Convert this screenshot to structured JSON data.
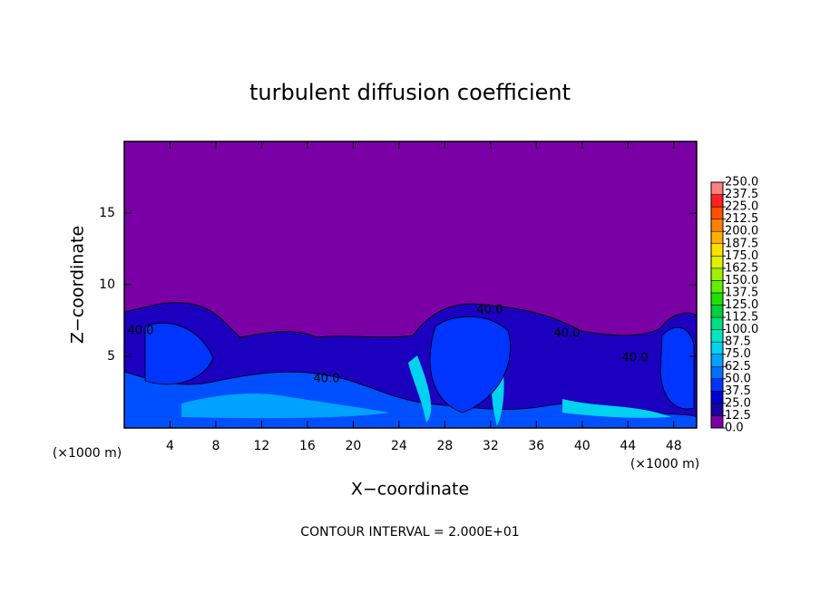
{
  "chart_data": {
    "type": "contour",
    "title": "turbulent diffusion coefficient",
    "xlabel": "X−coordinate",
    "ylabel": "Z−coordinate",
    "x_unit": "(×1000 m)",
    "y_unit": "(×1000 m)",
    "footer": "CONTOUR INTERVAL = 2.000E+01",
    "xlim": [
      0,
      50
    ],
    "ylim": [
      0,
      20
    ],
    "xticks": [
      4,
      8,
      12,
      16,
      20,
      24,
      28,
      32,
      36,
      40,
      44,
      48
    ],
    "yticks": [
      5,
      10,
      15
    ],
    "annotations": [
      "40.0",
      "40.0",
      "40.0",
      "40.0",
      "40.0"
    ],
    "colorbar": {
      "ticks": [
        {
          "value": 0,
          "label": "0.0"
        },
        12.5,
        {
          "value": 25,
          "label": "25.0"
        },
        37.5,
        {
          "value": 50,
          "label": "50.0"
        },
        62.5,
        {
          "value": 75,
          "label": "75.0"
        },
        87.5,
        {
          "value": 100,
          "label": "100.0"
        },
        112.5,
        {
          "value": 125,
          "label": "125.0"
        },
        137.5,
        {
          "value": 150,
          "label": "150.0"
        },
        162.5,
        {
          "value": 175,
          "label": "175.0"
        },
        187.5,
        {
          "value": 200,
          "label": "200.0"
        },
        212.5,
        {
          "value": 225,
          "label": "225.0"
        },
        237.5,
        {
          "value": 250,
          "label": "250.0"
        }
      ],
      "colors": [
        "#7a00a6",
        "#1c00a0",
        "#0000d2",
        "#0034ff",
        "#0070ff",
        "#00a2ff",
        "#00d2f0",
        "#00e8c0",
        "#00e080",
        "#00d040",
        "#20e000",
        "#60f000",
        "#a0f000",
        "#e0f000",
        "#ffe000",
        "#ffb000",
        "#ff8000",
        "#ff5000",
        "#ff2020",
        "#ff8080"
      ]
    }
  }
}
